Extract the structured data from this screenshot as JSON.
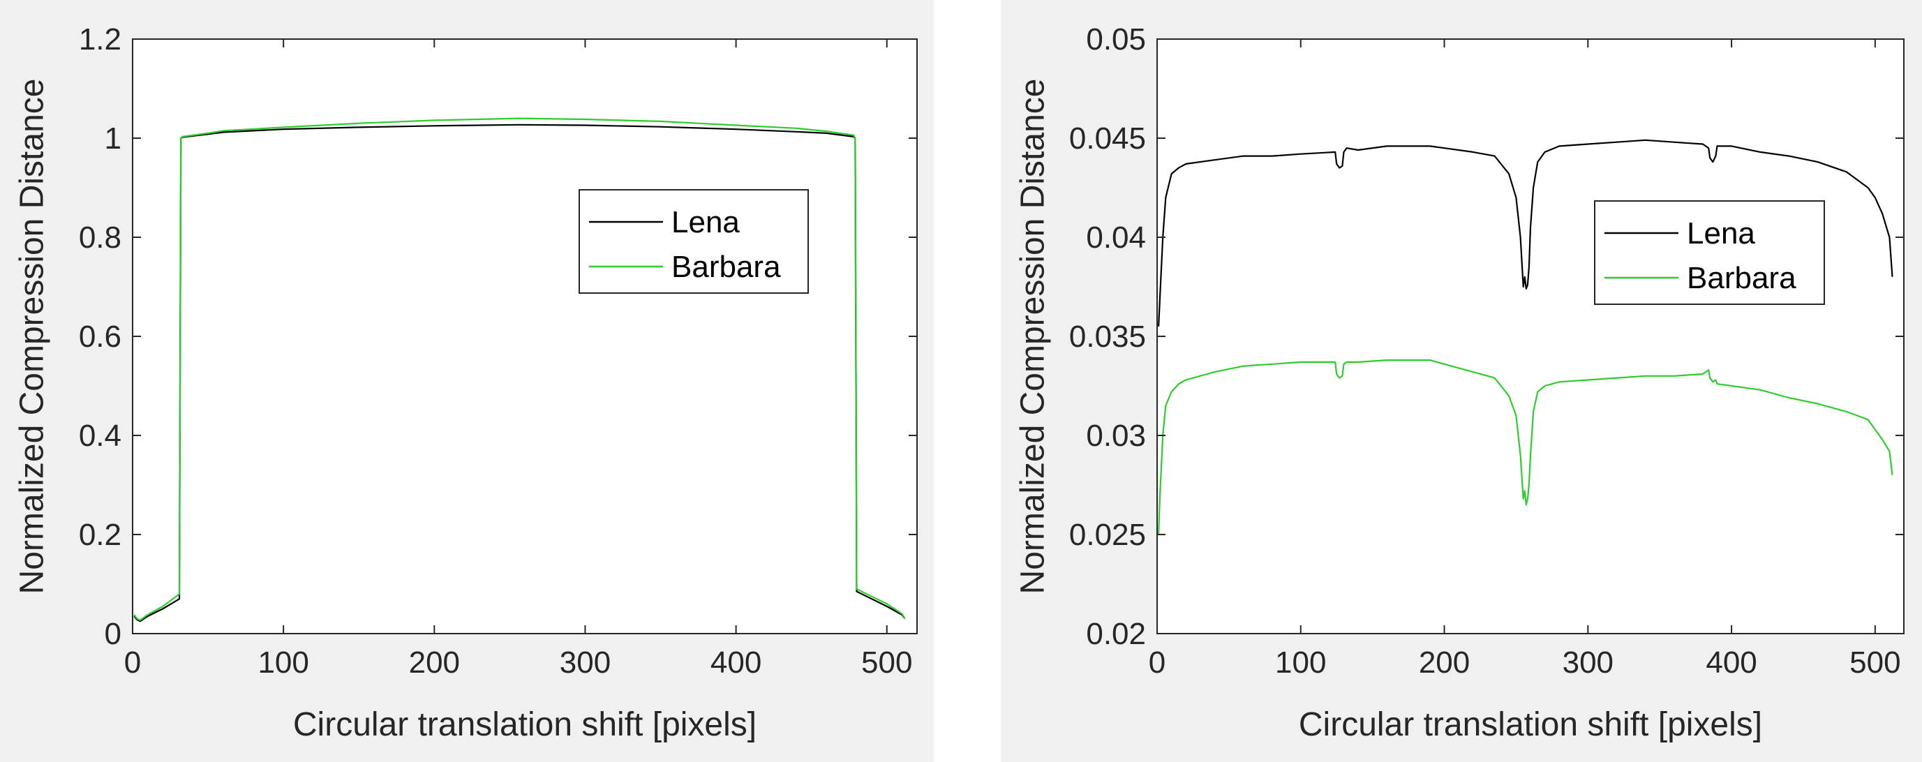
{
  "chart_data": [
    {
      "type": "line",
      "title": "",
      "xlabel": "Circular translation shift [pixels]",
      "ylabel": "Normalized Compression Distance",
      "xlim": [
        0,
        520
      ],
      "ylim": [
        0,
        1.2
      ],
      "xticks": [
        0,
        100,
        200,
        300,
        400,
        500
      ],
      "yticks": [
        0,
        0.2,
        0.4,
        0.6,
        0.8,
        1,
        1.2
      ],
      "xtick_labels": [
        "0",
        "100",
        "200",
        "300",
        "400",
        "500"
      ],
      "ytick_labels": [
        "0",
        "0.2",
        "0.4",
        "0.6",
        "0.8",
        "1",
        "1.2"
      ],
      "legend_position": "top-right",
      "series": [
        {
          "name": "Lena",
          "color": "#000000",
          "x": [
            1,
            3,
            5,
            10,
            20,
            31,
            32,
            33,
            50,
            60,
            100,
            150,
            200,
            256,
            300,
            350,
            400,
            440,
            460,
            478,
            479,
            480,
            490,
            500,
            510,
            512
          ],
          "y": [
            0.035,
            0.028,
            0.025,
            0.035,
            0.05,
            0.07,
            1.0,
            1.002,
            1.008,
            1.012,
            1.018,
            1.022,
            1.025,
            1.027,
            1.026,
            1.023,
            1.018,
            1.013,
            1.01,
            1.003,
            1.0,
            0.085,
            0.07,
            0.055,
            0.038,
            0.03
          ]
        },
        {
          "name": "Barbara",
          "color": "#2ecc2e",
          "x": [
            1,
            3,
            5,
            10,
            20,
            31,
            32,
            33,
            50,
            60,
            100,
            150,
            200,
            256,
            300,
            350,
            400,
            440,
            460,
            478,
            479,
            480,
            490,
            500,
            510,
            512
          ],
          "y": [
            0.038,
            0.03,
            0.027,
            0.038,
            0.055,
            0.08,
            1.0,
            1.003,
            1.01,
            1.015,
            1.022,
            1.03,
            1.036,
            1.04,
            1.038,
            1.034,
            1.026,
            1.02,
            1.014,
            1.006,
            1.0,
            0.09,
            0.075,
            0.06,
            0.04,
            0.03
          ]
        }
      ]
    },
    {
      "type": "line",
      "title": "",
      "xlabel": "Circular translation shift [pixels]",
      "ylabel": "Normalized Compression Distance",
      "xlim": [
        0,
        520
      ],
      "ylim": [
        0.02,
        0.05
      ],
      "xticks": [
        0,
        100,
        200,
        300,
        400,
        500
      ],
      "yticks": [
        0.02,
        0.025,
        0.03,
        0.035,
        0.04,
        0.045,
        0.05
      ],
      "xtick_labels": [
        "0",
        "100",
        "200",
        "300",
        "400",
        "500"
      ],
      "ytick_labels": [
        "0.02",
        "0.025",
        "0.03",
        "0.035",
        "0.04",
        "0.045",
        "0.05"
      ],
      "legend_position": "top-right",
      "series": [
        {
          "name": "Lena",
          "color": "#000000",
          "x": [
            1,
            2,
            4,
            6,
            10,
            15,
            20,
            40,
            60,
            80,
            100,
            124,
            125,
            127,
            129,
            130,
            132,
            140,
            160,
            180,
            190,
            200,
            220,
            235,
            245,
            250,
            253,
            255,
            256,
            257,
            258,
            259,
            260,
            262,
            265,
            270,
            280,
            300,
            320,
            340,
            360,
            380,
            384,
            385,
            387,
            389,
            390,
            400,
            420,
            440,
            460,
            480,
            495,
            500,
            505,
            510,
            512
          ],
          "y": [
            0.0355,
            0.037,
            0.04,
            0.042,
            0.0432,
            0.0435,
            0.0437,
            0.0439,
            0.0441,
            0.0441,
            0.0442,
            0.0443,
            0.0437,
            0.0435,
            0.0436,
            0.0443,
            0.0445,
            0.0444,
            0.0446,
            0.0446,
            0.0446,
            0.0445,
            0.0443,
            0.0441,
            0.0432,
            0.042,
            0.04,
            0.0375,
            0.038,
            0.0374,
            0.0376,
            0.0385,
            0.0405,
            0.0425,
            0.0438,
            0.0443,
            0.0446,
            0.0447,
            0.0448,
            0.0449,
            0.0448,
            0.0447,
            0.0445,
            0.044,
            0.0438,
            0.0441,
            0.0446,
            0.0446,
            0.0443,
            0.0441,
            0.0438,
            0.0433,
            0.0425,
            0.042,
            0.0412,
            0.04,
            0.038
          ]
        },
        {
          "name": "Barbara",
          "color": "#2ecc2e",
          "x": [
            1,
            2,
            4,
            6,
            10,
            15,
            20,
            40,
            60,
            80,
            100,
            124,
            125,
            127,
            129,
            130,
            132,
            140,
            160,
            180,
            190,
            200,
            220,
            235,
            245,
            250,
            253,
            255,
            256,
            257,
            258,
            259,
            260,
            262,
            265,
            270,
            280,
            300,
            320,
            340,
            360,
            380,
            384,
            385,
            387,
            389,
            390,
            400,
            420,
            440,
            460,
            480,
            495,
            500,
            505,
            510,
            512
          ],
          "y": [
            0.025,
            0.027,
            0.03,
            0.0315,
            0.0322,
            0.0326,
            0.0328,
            0.0332,
            0.0335,
            0.0336,
            0.0337,
            0.0337,
            0.0331,
            0.0329,
            0.033,
            0.0336,
            0.0337,
            0.0337,
            0.0338,
            0.0338,
            0.0338,
            0.0336,
            0.0332,
            0.0329,
            0.032,
            0.031,
            0.029,
            0.0268,
            0.0272,
            0.0265,
            0.0268,
            0.0275,
            0.029,
            0.0312,
            0.0322,
            0.0325,
            0.0327,
            0.0328,
            0.0329,
            0.033,
            0.033,
            0.0331,
            0.0333,
            0.0329,
            0.0327,
            0.0328,
            0.0326,
            0.0325,
            0.0323,
            0.0319,
            0.0316,
            0.0312,
            0.0308,
            0.0303,
            0.0298,
            0.0292,
            0.028
          ]
        }
      ]
    }
  ]
}
